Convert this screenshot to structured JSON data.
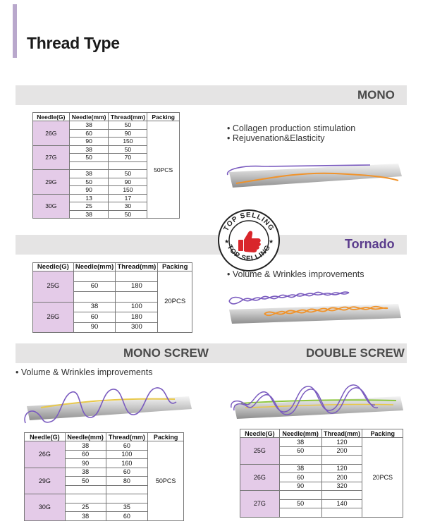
{
  "header": {
    "title": "Thread Type"
  },
  "sections": {
    "mono": {
      "label": "MONO",
      "bullets": [
        "• Collagen production stimulation",
        "• Rejuvenation&Elasticity"
      ],
      "headers": [
        "Needle(G)",
        "Needle(mm)",
        "Thread(mm)",
        "Packing"
      ],
      "packing": "50PCS",
      "groups": [
        {
          "gauge": "26G",
          "rows": [
            [
              "38",
              "50"
            ],
            [
              "60",
              "90"
            ],
            [
              "90",
              "150"
            ]
          ]
        },
        {
          "gauge": "27G",
          "rows": [
            [
              "38",
              "50"
            ],
            [
              "50",
              "70"
            ],
            [
              "",
              ""
            ]
          ]
        },
        {
          "gauge": "29G",
          "rows": [
            [
              "38",
              "50"
            ],
            [
              "50",
              "90"
            ],
            [
              "90",
              "150"
            ]
          ]
        },
        {
          "gauge": "30G",
          "rows": [
            [
              "13",
              "17"
            ],
            [
              "25",
              "30"
            ],
            [
              "38",
              "50"
            ]
          ]
        }
      ]
    },
    "tornado": {
      "label": "Tornado",
      "bullets": [
        "• Volume & Wrinkles improvements"
      ],
      "headers": [
        "Needle(G)",
        "Needle(mm)",
        "Thread(mm)",
        "Packing"
      ],
      "packing": "20PCS",
      "groups": [
        {
          "gauge": "25G",
          "rows": [
            [
              "",
              ""
            ],
            [
              "60",
              "180"
            ],
            [
              "",
              ""
            ]
          ]
        },
        {
          "gauge": "26G",
          "rows": [
            [
              "38",
              "100"
            ],
            [
              "60",
              "180"
            ],
            [
              "90",
              "300"
            ]
          ]
        }
      ]
    },
    "mono_screw": {
      "label": "MONO SCREW",
      "bullets": [
        "• Volume & Wrinkles improvements"
      ],
      "headers": [
        "Needle(G)",
        "Needle(mm)",
        "Thread(mm)",
        "Packing"
      ],
      "packing": "50PCS",
      "groups": [
        {
          "gauge": "26G",
          "rows": [
            [
              "38",
              "60"
            ],
            [
              "60",
              "100"
            ],
            [
              "90",
              "160"
            ]
          ]
        },
        {
          "gauge": "29G",
          "rows": [
            [
              "38",
              "60"
            ],
            [
              "50",
              "80"
            ],
            [
              "",
              ""
            ]
          ]
        },
        {
          "gauge": "30G",
          "rows": [
            [
              "",
              ""
            ],
            [
              "25",
              "35"
            ],
            [
              "38",
              "60"
            ]
          ]
        }
      ]
    },
    "double_screw": {
      "label": "DOUBLE SCREW",
      "headers": [
        "Needle(G)",
        "Needle(mm)",
        "Thread(mm)",
        "Packing"
      ],
      "packing": "20PCS",
      "groups": [
        {
          "gauge": "25G",
          "rows": [
            [
              "38",
              "120"
            ],
            [
              "60",
              "200"
            ],
            [
              "",
              ""
            ]
          ]
        },
        {
          "gauge": "26G",
          "rows": [
            [
              "38",
              "120"
            ],
            [
              "60",
              "200"
            ],
            [
              "90",
              "320"
            ]
          ]
        },
        {
          "gauge": "27G",
          "rows": [
            [
              "",
              ""
            ],
            [
              "50",
              "140"
            ],
            [
              "",
              ""
            ]
          ]
        }
      ]
    }
  },
  "badge": {
    "top_text": "TOP SELLING",
    "bottom_text": "TOP SELLING",
    "icon": "thumbs-up-icon",
    "accent": "#d9262b"
  },
  "colors": {
    "gauge_cell": "#e4cbe8",
    "band": "#e5e4e4",
    "tornado_label": "#5a3b8c",
    "thread_purple": "#7a5bbf",
    "thread_orange": "#f0932b",
    "thread_yellow": "#e8c84a",
    "thread_green": "#8dc63f"
  }
}
